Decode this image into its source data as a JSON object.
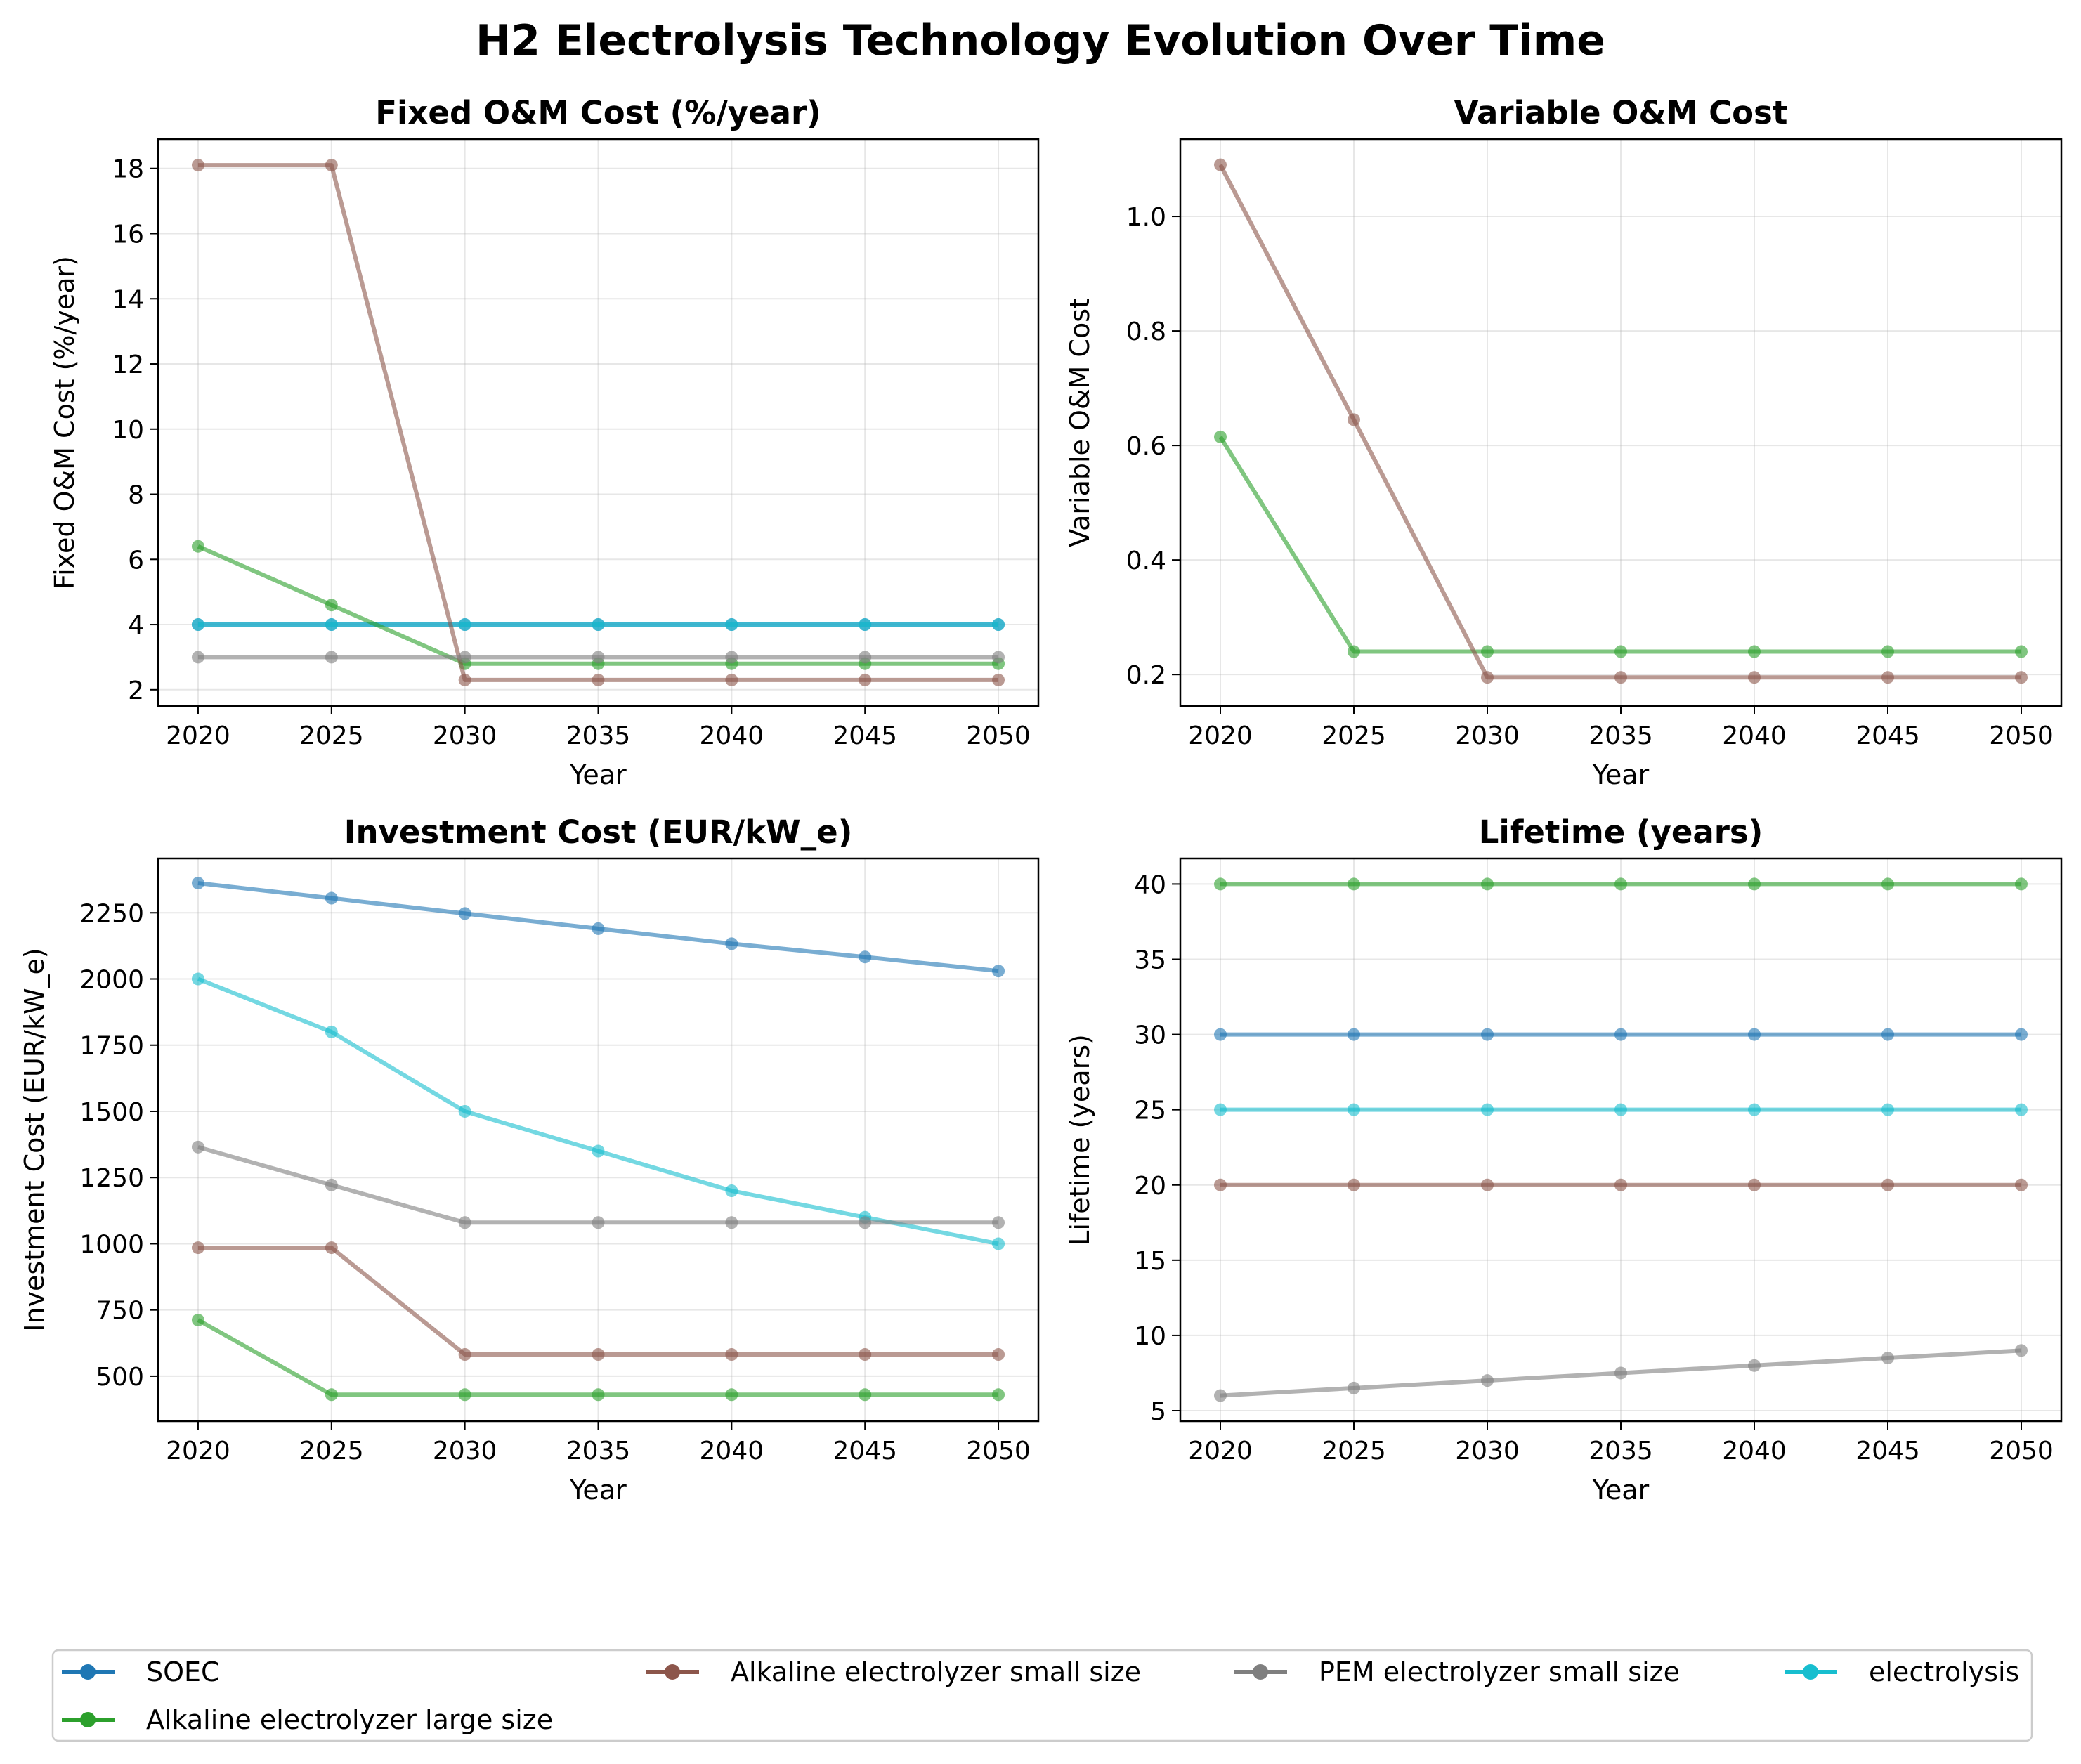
{
  "title": "H2 Electrolysis Technology Evolution Over Time",
  "colors": {
    "SOEC": "#1f77b4",
    "Alkaline electrolyzer large size": "#2ca02c",
    "Alkaline electrolyzer small size": "#8c564b",
    "PEM electrolyzer small size": "#7f7f7f",
    "electrolysis": "#17becf"
  },
  "legend": {
    "placement": "bottom",
    "entries": [
      "SOEC",
      "Alkaline electrolyzer large size",
      "Alkaline electrolyzer small size",
      "PEM electrolyzer small size",
      "electrolysis"
    ]
  },
  "chart_data": [
    {
      "type": "line",
      "title": "Fixed O&M Cost (%/year)",
      "xlabel": "Year",
      "ylabel": "Fixed O&M Cost (%/year)",
      "xlim": [
        2018.5,
        2051.5
      ],
      "ylim": [
        1.5,
        18.9
      ],
      "xticks": [
        2020,
        2025,
        2030,
        2035,
        2040,
        2045,
        2050
      ],
      "yticks": [
        2,
        4,
        6,
        8,
        10,
        12,
        14,
        16,
        18
      ],
      "grid": true,
      "x": [
        2020,
        2025,
        2030,
        2035,
        2040,
        2045,
        2050
      ],
      "series": [
        {
          "name": "SOEC",
          "values": [
            4,
            4,
            4,
            4,
            4,
            4,
            4
          ]
        },
        {
          "name": "electrolysis",
          "values": [
            4,
            4,
            4,
            4,
            4,
            4,
            4
          ]
        },
        {
          "name": "Alkaline electrolyzer large size",
          "values": [
            6.4,
            4.6,
            2.8,
            2.8,
            2.8,
            2.8,
            2.8
          ]
        },
        {
          "name": "Alkaline electrolyzer small size",
          "values": [
            18.1,
            18.1,
            2.3,
            2.3,
            2.3,
            2.3,
            2.3
          ]
        },
        {
          "name": "PEM electrolyzer small size",
          "values": [
            3,
            3,
            3,
            3,
            3,
            3,
            3
          ]
        }
      ]
    },
    {
      "type": "line",
      "title": "Variable O&M Cost",
      "xlabel": "Year",
      "ylabel": "Variable O&M Cost",
      "xlim": [
        2018.5,
        2051.5
      ],
      "ylim": [
        0.145,
        1.135
      ],
      "xticks": [
        2020,
        2025,
        2030,
        2035,
        2040,
        2045,
        2050
      ],
      "yticks": [
        0.2,
        0.4,
        0.6,
        0.8,
        1.0
      ],
      "grid": true,
      "x": [
        2020,
        2025,
        2030,
        2035,
        2040,
        2045,
        2050
      ],
      "series": [
        {
          "name": "Alkaline electrolyzer large size",
          "values": [
            0.615,
            0.24,
            0.24,
            0.24,
            0.24,
            0.24,
            0.24
          ]
        },
        {
          "name": "Alkaline electrolyzer small size",
          "values": [
            1.09,
            0.645,
            0.195,
            0.195,
            0.195,
            0.195,
            0.195
          ]
        }
      ]
    },
    {
      "type": "line",
      "title": "Investment Cost (EUR/kW_e)",
      "xlabel": "Year",
      "ylabel": "Investment Cost (EUR/kW_e)",
      "xlim": [
        2018.5,
        2051.5
      ],
      "ylim": [
        330,
        2455
      ],
      "xticks": [
        2020,
        2025,
        2030,
        2035,
        2040,
        2045,
        2050
      ],
      "yticks": [
        500,
        750,
        1000,
        1250,
        1500,
        1750,
        2000,
        2250
      ],
      "grid": true,
      "x": [
        2020,
        2025,
        2030,
        2035,
        2040,
        2045,
        2050
      ],
      "series": [
        {
          "name": "SOEC",
          "values": [
            2362,
            2305,
            2247,
            2190,
            2133,
            2083,
            2030
          ]
        },
        {
          "name": "electrolysis",
          "values": [
            2000,
            1800,
            1500,
            1350,
            1200,
            1100,
            1000
          ]
        },
        {
          "name": "PEM electrolyzer small size",
          "values": [
            1365,
            1222,
            1080,
            1080,
            1080,
            1080,
            1080
          ]
        },
        {
          "name": "Alkaline electrolyzer small size",
          "values": [
            985,
            985,
            582,
            582,
            582,
            582,
            582
          ]
        },
        {
          "name": "Alkaline electrolyzer large size",
          "values": [
            712,
            430,
            430,
            430,
            430,
            430,
            430
          ]
        }
      ]
    },
    {
      "type": "line",
      "title": "Lifetime (years)",
      "xlabel": "Year",
      "ylabel": "Lifetime (years)",
      "xlim": [
        2018.5,
        2051.5
      ],
      "ylim": [
        4.3,
        41.7
      ],
      "xticks": [
        2020,
        2025,
        2030,
        2035,
        2040,
        2045,
        2050
      ],
      "yticks": [
        5,
        10,
        15,
        20,
        25,
        30,
        35,
        40
      ],
      "grid": true,
      "x": [
        2020,
        2025,
        2030,
        2035,
        2040,
        2045,
        2050
      ],
      "series": [
        {
          "name": "Alkaline electrolyzer large size",
          "values": [
            40,
            40,
            40,
            40,
            40,
            40,
            40
          ]
        },
        {
          "name": "SOEC",
          "values": [
            30,
            30,
            30,
            30,
            30,
            30,
            30
          ]
        },
        {
          "name": "electrolysis",
          "values": [
            25,
            25,
            25,
            25,
            25,
            25,
            25
          ]
        },
        {
          "name": "Alkaline electrolyzer small size",
          "values": [
            20,
            20,
            20,
            20,
            20,
            20,
            20
          ]
        },
        {
          "name": "PEM electrolyzer small size",
          "values": [
            6,
            6.5,
            7,
            7.5,
            8,
            8.5,
            9
          ]
        }
      ]
    }
  ]
}
